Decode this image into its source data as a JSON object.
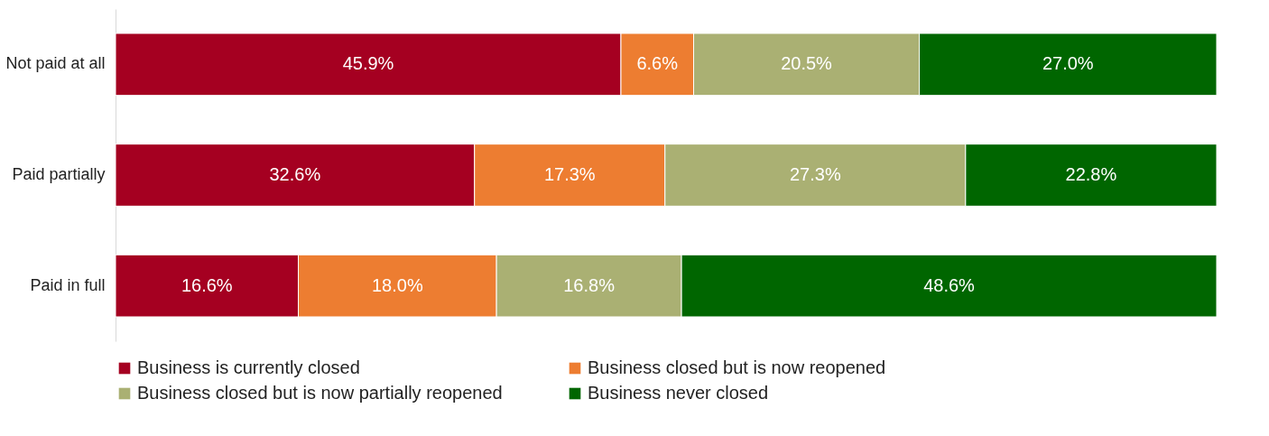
{
  "chart_data": {
    "type": "bar",
    "orientation": "horizontal",
    "stacked": true,
    "legend": "bottom",
    "tick_labels": "y",
    "categories": [
      "Not paid at all",
      "Paid partially",
      "Paid in full"
    ],
    "series": [
      {
        "name": "Business is currently closed",
        "color": "#a50021",
        "values": [
          45.9,
          32.6,
          16.6
        ],
        "value_labels": [
          "45.9%",
          "32.6%",
          "16.6%"
        ]
      },
      {
        "name": "Business closed but is now reopened",
        "color": "#ed7d31",
        "values": [
          6.6,
          17.3,
          18.0
        ],
        "value_labels": [
          "6.6%",
          "17.3%",
          "18.0%"
        ]
      },
      {
        "name": "Business closed but is now partially reopened",
        "color": "#aab073",
        "values": [
          20.5,
          27.3,
          16.8
        ],
        "value_labels": [
          "20.5%",
          "27.3%",
          "16.8%"
        ]
      },
      {
        "name": "Business never closed",
        "color": "#006600",
        "values": [
          27.0,
          22.8,
          48.6
        ],
        "value_labels": [
          "27.0%",
          "22.8%",
          "48.6%"
        ]
      }
    ]
  }
}
